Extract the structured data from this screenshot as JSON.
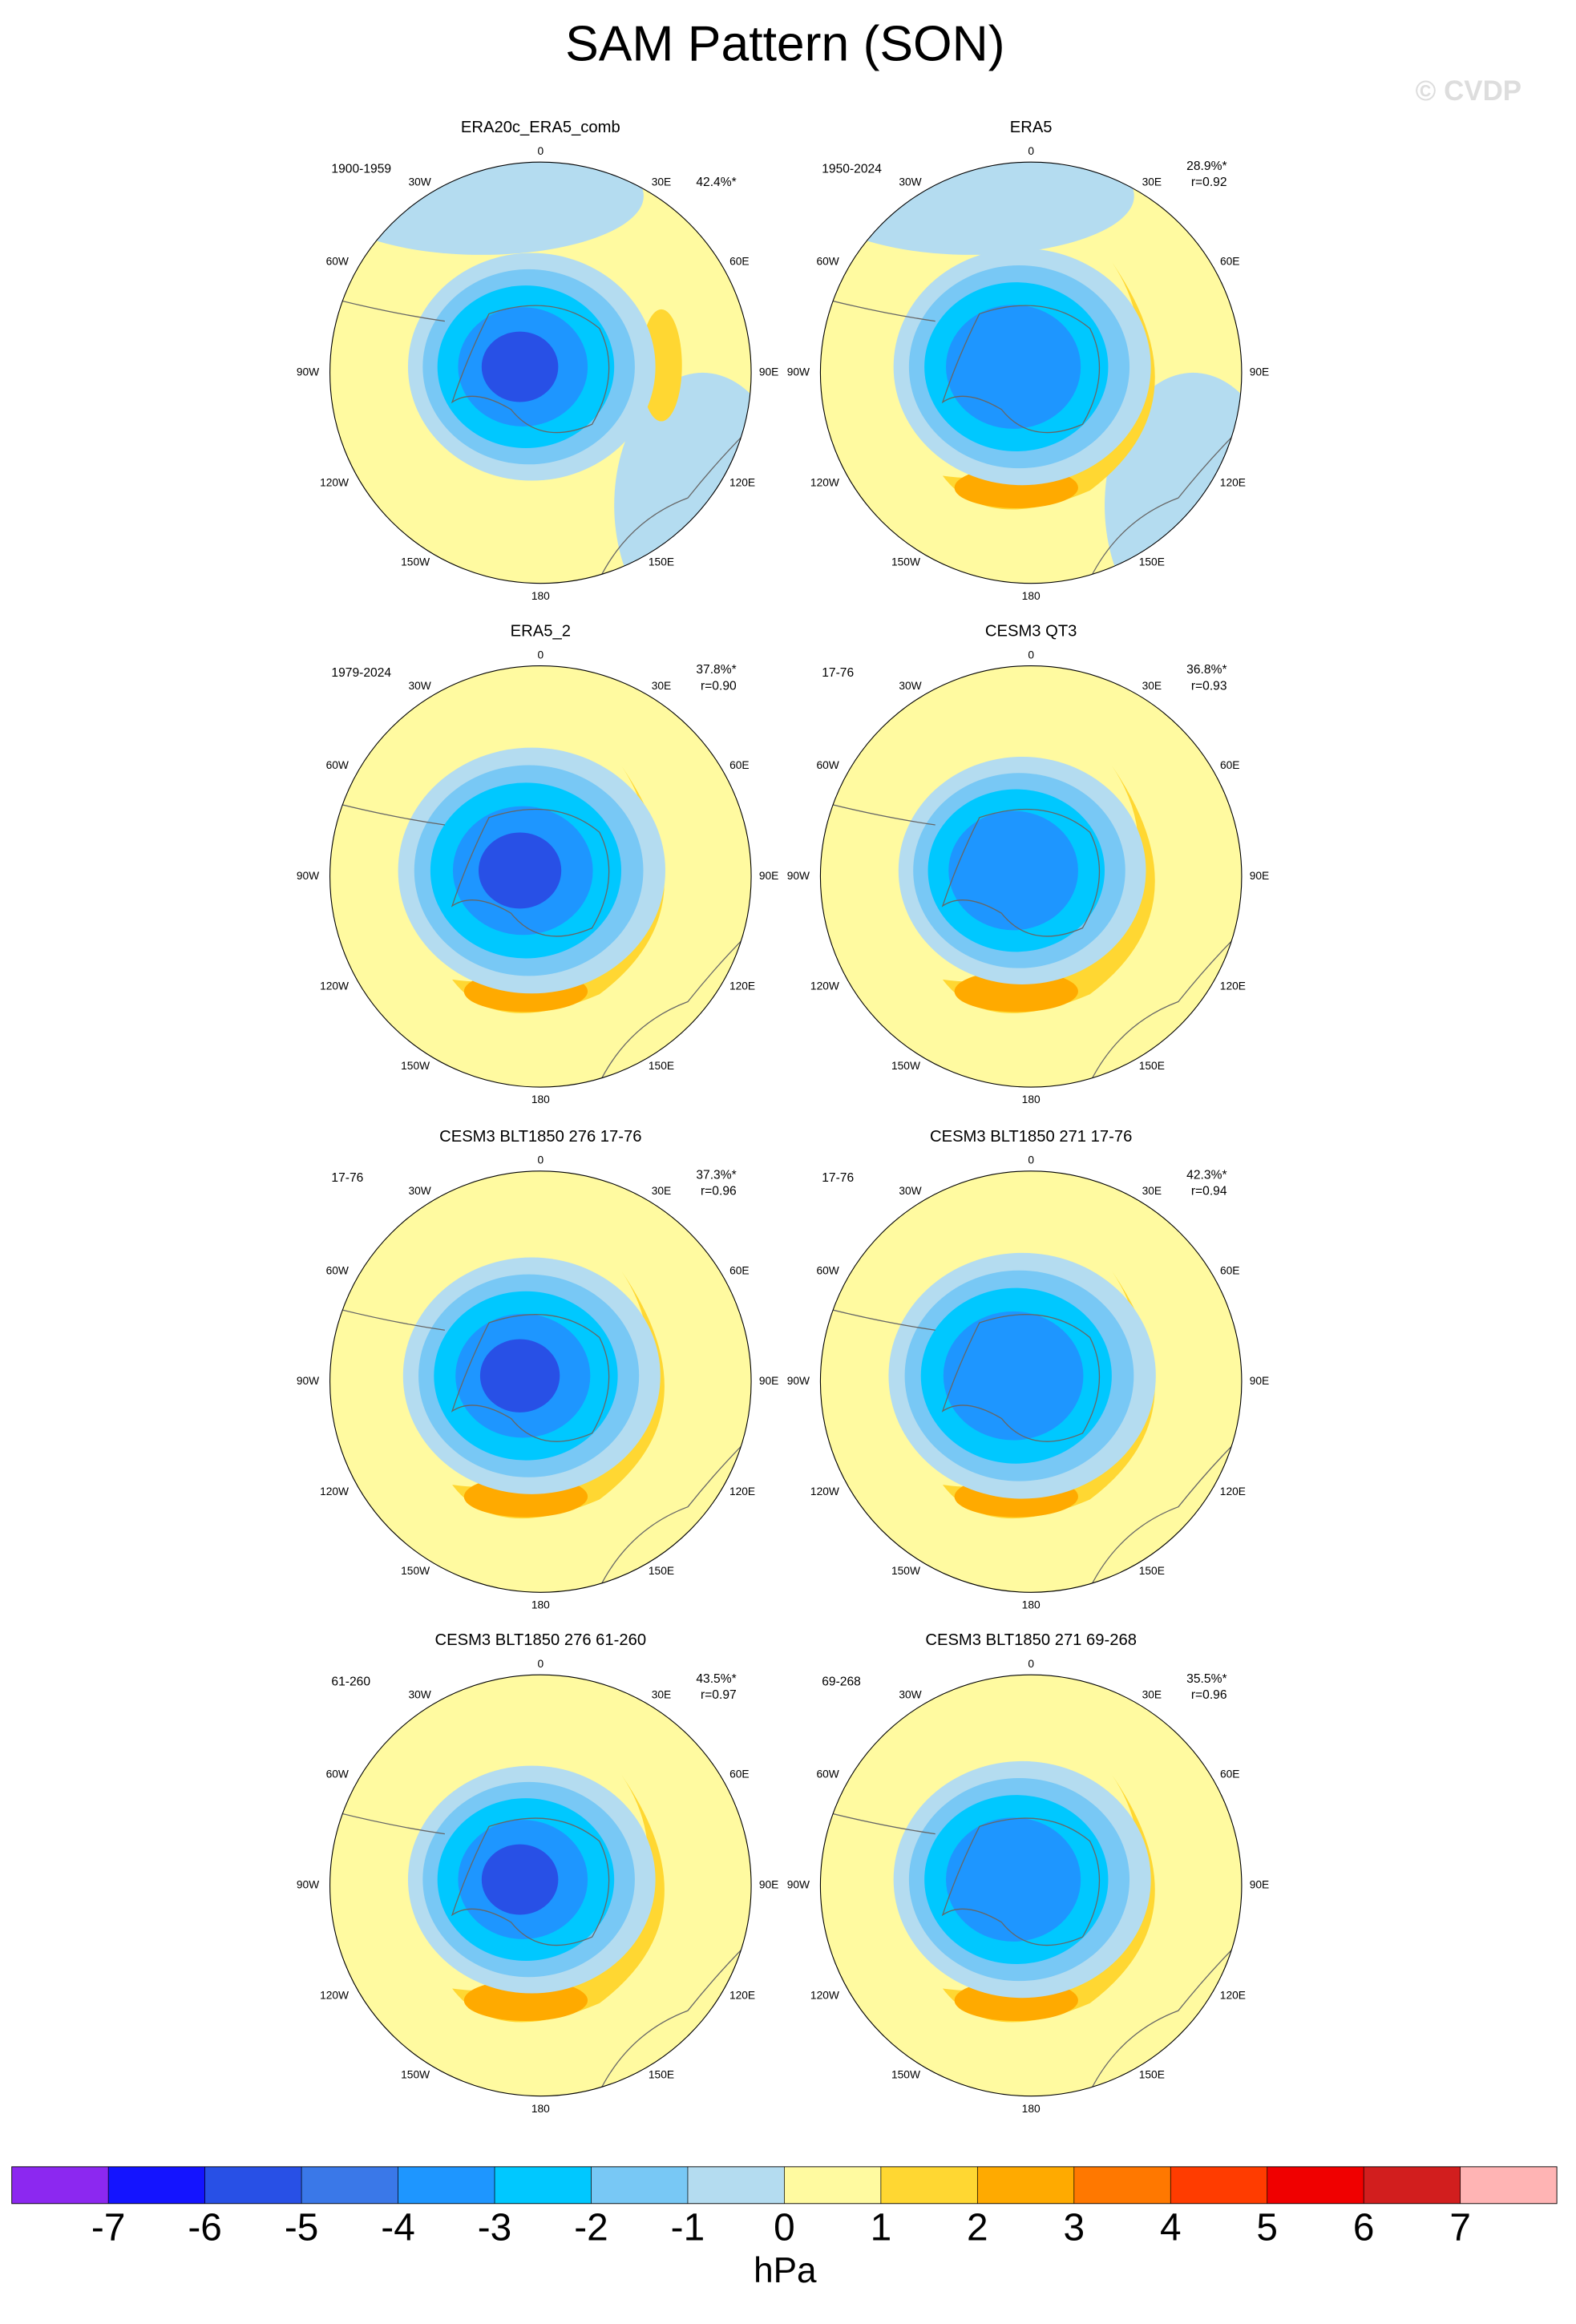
{
  "title": "SAM Pattern (SON)",
  "watermark": "© CVDP",
  "lon_labels": [
    "0",
    "30E",
    "60E",
    "90E",
    "120E",
    "150E",
    "180",
    "150W",
    "120W",
    "90W",
    "60W",
    "30W"
  ],
  "panels": [
    {
      "title": "ERA20c_ERA5_comb",
      "period": "1900-1959",
      "pct": "42.4%*"
    },
    {
      "title": "ERA5",
      "period": "1950-2024",
      "pct": "28.9%*",
      "r": "r=0.92"
    },
    {
      "title": "ERA5_2",
      "period": "1979-2024",
      "pct": "37.8%*",
      "r": "r=0.90"
    },
    {
      "title": "CESM3 QT3",
      "period": "17-76",
      "pct": "36.8%*",
      "r": "r=0.93"
    },
    {
      "title": "CESM3 BLT1850 276 17-76",
      "period": "17-76",
      "pct": "37.3%*",
      "r": "r=0.96"
    },
    {
      "title": "CESM3 BLT1850 271 17-76",
      "period": "17-76",
      "pct": "42.3%*",
      "r": "r=0.94"
    },
    {
      "title": "CESM3 BLT1850 276 61-260",
      "period": "61-260",
      "pct": "43.5%*",
      "r": "r=0.97"
    },
    {
      "title": "CESM3 BLT1850 271 69-268",
      "period": "69-268",
      "pct": "35.5%*",
      "r": "r=0.96"
    }
  ],
  "colorbar": {
    "colors": [
      "#8c28f0",
      "#1414ff",
      "#2850e6",
      "#3a78e8",
      "#1e96ff",
      "#00c8ff",
      "#78c8f5",
      "#b4dcf0",
      "#fffaa0",
      "#ffd732",
      "#ffaa00",
      "#ff7800",
      "#ff3c00",
      "#f00000",
      "#d21e1e",
      "#ffb4b4"
    ],
    "ticks": [
      -7,
      -6,
      -5,
      -4,
      -3,
      -2,
      -1,
      0,
      1,
      2,
      3,
      4,
      5,
      6,
      7
    ],
    "unit": "hPa"
  }
}
